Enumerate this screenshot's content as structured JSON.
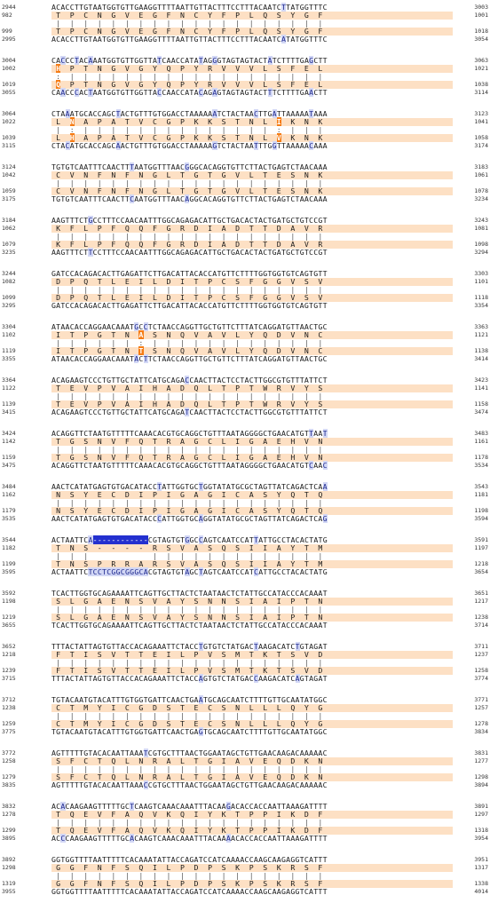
{
  "alignment": {
    "colors": {
      "aa_band": "#fde0c4",
      "nt_mismatch_box": "#d2d7f5",
      "aa_mismatch": "#f57c15",
      "indel": "#2330cf"
    },
    "blocks": [
      {
        "top_pos": "2944",
        "top_end": "3003",
        "top_seq": "ACACCTTGTAATGGTGTTGAAGGTTTTAATTGTTACTTTCCTTTACAATCTTATGGTTTC",
        "aa1_pos": "982",
        "aa1_end": "1001",
        "aa1": "T P C N G V E G F N C Y F P L Q S Y G F",
        "aa2_pos": "999",
        "aa2_end": "1018",
        "aa2": "T P C N G V E G F N C Y F P L Q S Y G F",
        "bot_pos": "2995",
        "bot_end": "3054",
        "bot_seq": "ACACCTTGTAATGGTGTTGAAGGTTTTAATTGTTACTTTCCTTTACAATCATATGGTTTC"
      },
      {
        "top_pos": "3004",
        "top_end": "3063",
        "top_seq": "CACCCTACAAATGGTGTTGGTTATCAACCATATAGGGTAGTAGTACTATCTTTTGAGCTT",
        "aa1_pos": "1002",
        "aa1_end": "1021",
        "aa1": "H P T N G V G Y Q P Y R V V V L S F E L",
        "aa2_pos": "1019",
        "aa2_end": "1038",
        "aa2": "Q P T N G V G Y Q P Y R V V V L S F E L",
        "bot_pos": "3055",
        "bot_end": "3114",
        "bot_seq": "CAACCCACTAATGGTGTTGGTTACCAACCATACAGAGTAGTAGTACTTTCTTTTGAACTT"
      },
      {
        "top_pos": "3064",
        "top_end": "3123",
        "top_seq": "CTAAATGCACCAGCTACTGTTTGTGGACCTAAAAAATCTACTAACTTGATTAAAAATAAA",
        "aa1_pos": "1022",
        "aa1_end": "1041",
        "aa1": "L N A P A T V C G P K K S T N L I K N K",
        "aa2_pos": "1039",
        "aa2_end": "1058",
        "aa2": "L H A P A T V C G P K K S T N L V K N K",
        "bot_pos": "3115",
        "bot_end": "3174",
        "bot_seq": "CTACATGCACCAGCAACTGTTTGTGGACCTAAAAAGTCTACTAATTTGGTTAAAAACAAA"
      },
      {
        "top_pos": "3124",
        "top_end": "3183",
        "top_seq": "TGTGTCAATTTCAACTTTAATGGTTTAACGGGCACAGGTGTTCTTACTGAGTCTAACAAA",
        "aa1_pos": "1042",
        "aa1_end": "1061",
        "aa1": "C V N F N F N G L T G T G V L T E S N K",
        "aa2_pos": "1059",
        "aa2_end": "1078",
        "aa2": "C V N F N F N G L T G T G V L T E S N K",
        "bot_pos": "3175",
        "bot_end": "3234",
        "bot_seq": "TGTGTCAATTTCAACTTCAATGGTTTAACAGGCACAGGTGTTCTTACTGAGTCTAACAAA"
      },
      {
        "top_pos": "3184",
        "top_end": "3243",
        "top_seq": "AAGTTTCTGCCTTTCCAACAATTTGGCAGAGACATTGCTGACACTACTGATGCTGTCCGT",
        "aa1_pos": "1062",
        "aa1_end": "1081",
        "aa1": "K F L P F Q Q F G R D I A D T T D A V R",
        "aa2_pos": "1079",
        "aa2_end": "1098",
        "aa2": "K F L P F Q Q F G R D I A D T T D A V R",
        "bot_pos": "3235",
        "bot_end": "3294",
        "bot_seq": "AAGTTTCTTCCTTTCCAACAATTTGGCAGAGACATTGCTGACACTACTGATGCTGTCCGT"
      },
      {
        "top_pos": "3244",
        "top_end": "3303",
        "top_seq": "GATCCACAGACACTTGAGATTCTTGACATTACACCATGTTCTTTTGGTGGTGTCAGTGTT",
        "aa1_pos": "1082",
        "aa1_end": "1101",
        "aa1": "D P Q T L E I L D I T P C S F G G V S V",
        "aa2_pos": "1099",
        "aa2_end": "1118",
        "aa2": "D P Q T L E I L D I T P C S F G G V S V",
        "bot_pos": "3295",
        "bot_end": "3354",
        "bot_seq": "GATCCACAGACACTTGAGATTCTTGACATTACACCATGTTCTTTTGGTGGTGTCAGTGTT"
      },
      {
        "top_pos": "3304",
        "top_end": "3363",
        "top_seq": "ATAACACCAGGAACAAATGCCTCTAACCAGGTTGCTGTTCTTTATCAGGATGTTAACTGC",
        "aa1_pos": "1102",
        "aa1_end": "1121",
        "aa1": "I T P G T N A S N Q V A V L Y Q D V N C",
        "aa2_pos": "1119",
        "aa2_end": "1138",
        "aa2": "I T P G T N T S N Q V A V L Y Q D V N C",
        "bot_pos": "3355",
        "bot_end": "3414",
        "bot_seq": "ATAACACCAGGAACAAATACTTCTAACCAGGTTGCTGTTCTTTATCAGGATGTTAACTGC"
      },
      {
        "top_pos": "3364",
        "top_end": "3423",
        "top_seq": "ACAGAAGTCCCTGTTGCTATTCATGCAGACCAACTTACTCCTACTTGGCGTGTTTATTCT",
        "aa1_pos": "1122",
        "aa1_end": "1141",
        "aa1": "T E V P V A I H A D Q L T P T W R V Y S",
        "aa2_pos": "1139",
        "aa2_end": "1158",
        "aa2": "T E V P V A I H A D Q L T P T W R V Y S",
        "bot_pos": "3415",
        "bot_end": "3474",
        "bot_seq": "ACAGAAGTCCCTGTTGCTATTCATGCAGATCAACTTACTCCTACTTGGCGTGTTTATTCT"
      },
      {
        "top_pos": "3424",
        "top_end": "3483",
        "top_seq": "ACAGGTTCTAATGTTTTTCAAACACGTGCAGGCTGTTTAATAGGGGCTGAACATGTTAAT",
        "aa1_pos": "1142",
        "aa1_end": "1161",
        "aa1": "T G S N V F Q T R A G C L I G A E H V N",
        "aa2_pos": "1159",
        "aa2_end": "1178",
        "aa2": "T G S N V F Q T R A G C L I G A E H V N",
        "bot_pos": "3475",
        "bot_end": "3534",
        "bot_seq": "ACAGGTTCTAATGTTTTTCAAACACGTGCAGGCTGTTTAATAGGGGCTGAACATGTCAAC"
      },
      {
        "top_pos": "3484",
        "top_end": "3543",
        "top_seq": "AACTCATATGAGTGTGACATACCTATTGGTGCTGGTATATGCGCTAGTTATCAGACTCAA",
        "aa1_pos": "1162",
        "aa1_end": "1181",
        "aa1": "N S Y E C D I P I G A G I C A S Y Q T Q",
        "aa2_pos": "1179",
        "aa2_end": "1198",
        "aa2": "N S Y E C D I P I G A G I C A S Y Q T Q",
        "bot_pos": "3535",
        "bot_end": "3594",
        "bot_seq": "AACTCATATGAGTGTGACATACCCATTGGTGCAGGTATATGCGCTAGTTATCAGACTCAG"
      },
      {
        "top_pos": "3544",
        "top_end": "3591",
        "top_seq": "ACTAATTCA------------CGTAGTGTGGCCAGTCAATCCATTATTGCCTACACTATG",
        "aa1_pos": "1182",
        "aa1_end": "1197",
        "aa1": "T N S - - - - R S V A S Q S I I A Y T M",
        "aa2_pos": "1199",
        "aa2_end": "1218",
        "aa2": "T N S P R R A R S V A S Q S I I A Y T M",
        "bot_pos": "3595",
        "bot_end": "3654",
        "bot_seq": "ACTAATTCTCCTCGGCGGGCACGTAGTGTAGCTAGTCAATCCATCATTGCCTACACTATG"
      },
      {
        "top_pos": "3592",
        "top_end": "3651",
        "top_seq": "TCACTTGGTGCAGAAAATTCAGTTGCTTACTCTAATAACTCTATTGCCATACCCACAAAT",
        "aa1_pos": "1198",
        "aa1_end": "1217",
        "aa1": "S L G A E N S V A Y S N N S I A I P T N",
        "aa2_pos": "1219",
        "aa2_end": "1238",
        "aa2": "S L G A E N S V A Y S N N S I A I P T N",
        "bot_pos": "3655",
        "bot_end": "3714",
        "bot_seq": "TCACTTGGTGCAGAAAATTCAGTTGCTTACTCTAATAACTCTATTGCCATACCCACAAAT"
      },
      {
        "top_pos": "3652",
        "top_end": "3711",
        "top_seq": "TTTACTATTAGTGTTACCACAGAAATTCTACCTGTGTCTATGACTAAGACATCTGTAGAT",
        "aa1_pos": "1218",
        "aa1_end": "1237",
        "aa1": "F T I S V T T E I L P V S M T K T S V D",
        "aa2_pos": "1239",
        "aa2_end": "1258",
        "aa2": "F T I S V T T E I L P V S M T K T S V D",
        "bot_pos": "3715",
        "bot_end": "3774",
        "bot_seq": "TTTACTATTAGTGTTACCACAGAAATTCTACCAGTGTCTATGACCAAGACATCAGTAGAT"
      },
      {
        "top_pos": "3712",
        "top_end": "3771",
        "top_seq": "TGTACAATGTACATTTGTGGTGATTCAACTGAATGCAGCAATCTTTTGTTGCAATATGGC",
        "aa1_pos": "1238",
        "aa1_end": "1257",
        "aa1": "C T M Y I C G D S T E C S N L L L Q Y G",
        "aa2_pos": "1259",
        "aa2_end": "1278",
        "aa2": "C T M Y I C G D S T E C S N L L L Q Y G",
        "bot_pos": "3775",
        "bot_end": "3834",
        "bot_seq": "TGTACAATGTACATTTGTGGTGATTCAACTGAGTGCAGCAATCTTTTGTTGCAATATGGC"
      },
      {
        "top_pos": "3772",
        "top_end": "3831",
        "top_seq": "AGTTTTTGTACACAATTAAATCGTGCTTTAACTGGAATAGCTGTTGAACAAGACAAAAAC",
        "aa1_pos": "1258",
        "aa1_end": "1277",
        "aa1": "S F C T Q L N R A L T G I A V E Q D K N",
        "aa2_pos": "1279",
        "aa2_end": "1298",
        "aa2": "S F C T Q L N R A L T G I A V E Q D K N",
        "bot_pos": "3835",
        "bot_end": "3894",
        "bot_seq": "AGTTTTTGTACACAATTAAACCGTGCTTTAACTGGAATAGCTGTTGAACAAGACAAAAAC"
      },
      {
        "top_pos": "3832",
        "top_end": "3891",
        "top_seq": "ACACAAGAAGTTTTTGCTCAAGTCAAACAAATTTACAAGACACCACCAATTAAAGATTTT",
        "aa1_pos": "1278",
        "aa1_end": "1297",
        "aa1": "T Q E V F A Q V K Q I Y K T P P I K D F",
        "aa2_pos": "1299",
        "aa2_end": "1318",
        "aa2": "T Q E V F A Q V K Q I Y K T P P I K D F",
        "bot_pos": "3895",
        "bot_end": "3954",
        "bot_seq": "ACCCAAGAAGTTTTTGCACAAGTCAAACAAATTTACAAAACACCACCAATTAAAGATTTT"
      },
      {
        "top_pos": "3892",
        "top_end": "3951",
        "top_seq": "GGTGGTTTTAATTTTTCACAAATATTACCAGATCCATCAAAACCAAGCAAGAGGTCATTT",
        "aa1_pos": "1298",
        "aa1_end": "1317",
        "aa1": "G G F N F S Q I L P D P S K P S K R S F",
        "aa2_pos": "1319",
        "aa2_end": "1338",
        "aa2": "G G F N F S Q I L P D P S K P S K R S F",
        "bot_pos": "3955",
        "bot_end": "4014",
        "bot_seq": "GGTGGTTTTAATTTTTCACAAATATTACCAGATCCATCAAAACCAAGCAAGAGGTCATTT"
      }
    ]
  }
}
